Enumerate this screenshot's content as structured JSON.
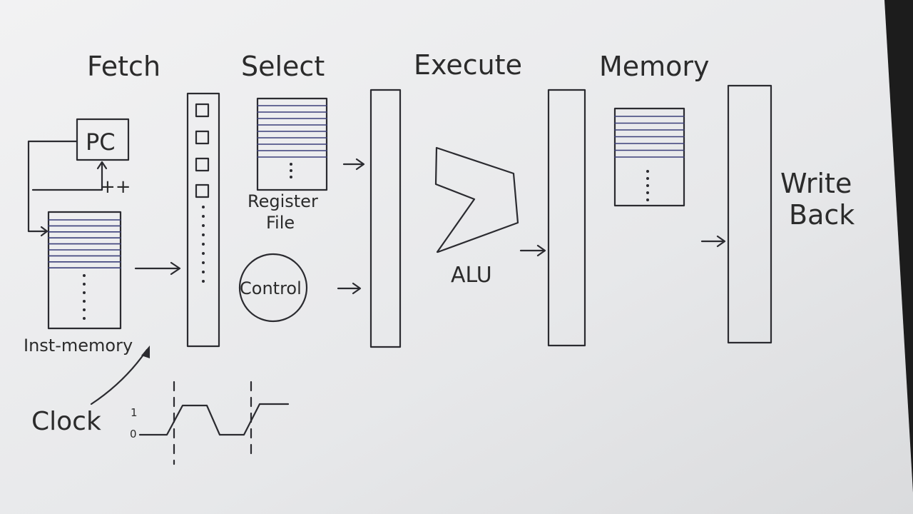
{
  "stages": {
    "fetch": "Fetch",
    "select": "Select",
    "execute": "Execute",
    "memory": "Memory",
    "writeback_line1": "Write",
    "writeback_line2": "Back"
  },
  "components": {
    "pc": "PC",
    "increment": "++",
    "inst_memory": "Inst-memory",
    "register_file_line1": "Register",
    "register_file_line2": "File",
    "control": "Control",
    "alu": "ALU",
    "clock": "Clock"
  },
  "clock_levels": {
    "high": "1",
    "low": "0"
  }
}
